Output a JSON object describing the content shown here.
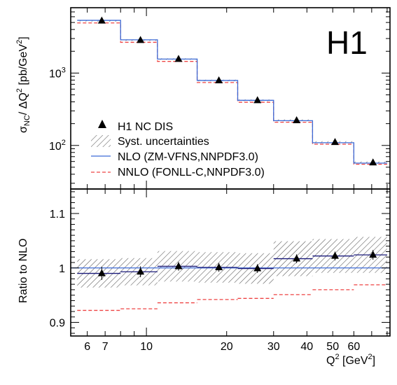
{
  "chart_data": [
    {
      "type": "line",
      "panel": "top",
      "scale": "log-log",
      "ylabel_main": "σ",
      "ylabel_main_sub": "NC",
      "ylabel_rest": "/ ΔQ",
      "ylabel_sup": "2",
      "ylabel_unit": " [pb/GeV",
      "ylabel_unit_sup": "2",
      "ylabel_close": "]",
      "ylim": [
        25,
        8000
      ],
      "yticks": [
        {
          "v": 100,
          "base": "10",
          "exp": "2"
        },
        {
          "v": 1000,
          "base": "10",
          "exp": "3"
        }
      ],
      "bins": [
        [
          5.5,
          8
        ],
        [
          8,
          11
        ],
        [
          11,
          15.5
        ],
        [
          15.5,
          22
        ],
        [
          22,
          30
        ],
        [
          30,
          42
        ],
        [
          42,
          60
        ],
        [
          60,
          80
        ]
      ],
      "series": [
        {
          "name": "H1 NC DIS",
          "style": "points",
          "color": "#000000",
          "x": [
            6.8,
            9.5,
            13.2,
            18.7,
            26.1,
            36.6,
            51.0,
            70.8
          ],
          "y": [
            5280,
            2850,
            1560,
            790,
            420,
            222,
            111,
            58
          ]
        },
        {
          "name": "NLO (ZM-VFNS,NNPDF3.0)",
          "style": "step",
          "color": "#3c6ad6",
          "y": [
            5350,
            2880,
            1560,
            790,
            420,
            220,
            109,
            57
          ]
        },
        {
          "name": "NNLO (FONLL-C,NNPDF3.0)",
          "style": "dashed-step",
          "color": "#ee4444",
          "y": [
            4930,
            2660,
            1450,
            740,
            395,
            209,
            104,
            55
          ]
        }
      ],
      "syst_label": "Syst. uncertainties",
      "syst_rel": [
        0.025,
        0.024,
        0.023,
        0.025,
        0.026,
        0.03,
        0.03,
        0.032
      ]
    },
    {
      "type": "line",
      "panel": "bottom",
      "ylabel": "Ratio to NLO",
      "ylim": [
        0.875,
        1.145
      ],
      "yticks": [
        {
          "v": 0.9,
          "label": "0.9"
        },
        {
          "v": 1.0,
          "label": "1"
        },
        {
          "v": 1.1,
          "label": "1.1"
        }
      ],
      "xlabel_main": "Q",
      "xlabel_sup": "2",
      "xlabel_unit": " [GeV",
      "xlabel_unit_sup": "2",
      "xlabel_close": "]",
      "xlim": [
        5.2,
        82
      ],
      "xticks": [
        {
          "v": 6,
          "label": "6"
        },
        {
          "v": 7,
          "label": "7"
        },
        {
          "v": 10,
          "label": "10"
        },
        {
          "v": 20,
          "label": "20"
        },
        {
          "v": 30,
          "label": "30"
        },
        {
          "v": 40,
          "label": "40"
        },
        {
          "v": 50,
          "label": "50"
        },
        {
          "v": 60,
          "label": "60"
        }
      ],
      "bins": [
        [
          5.5,
          8
        ],
        [
          8,
          11
        ],
        [
          11,
          15.5
        ],
        [
          15.5,
          22
        ],
        [
          22,
          30
        ],
        [
          30,
          42
        ],
        [
          42,
          60
        ],
        [
          60,
          80
        ]
      ],
      "data_ratio": [
        0.99,
        0.993,
        1.003,
        1.001,
        0.999,
        1.017,
        1.022,
        1.024
      ],
      "data_err": [
        0.012,
        0.01,
        0.008,
        0.008,
        0.008,
        0.008,
        0.008,
        0.009
      ],
      "syst_band": [
        0.026,
        0.025,
        0.028,
        0.028,
        0.028,
        0.032,
        0.031,
        0.033
      ],
      "nlo_ratio": 1.0,
      "nnlo_ratio": [
        0.922,
        0.925,
        0.936,
        0.942,
        0.944,
        0.951,
        0.96,
        0.969
      ]
    }
  ],
  "experiment_label": "H1"
}
